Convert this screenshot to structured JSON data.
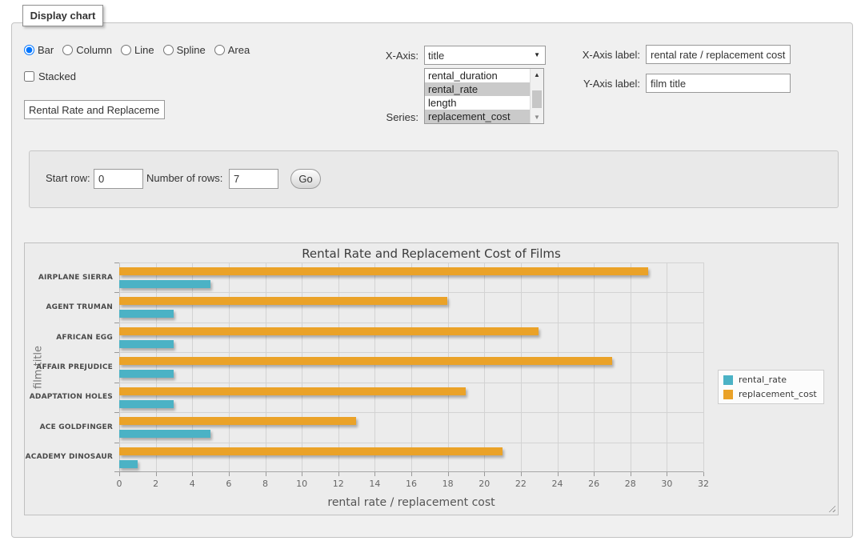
{
  "panel": {
    "legend": "Display chart"
  },
  "controls": {
    "chart_types": [
      {
        "label": "Bar",
        "selected": true
      },
      {
        "label": "Column",
        "selected": false
      },
      {
        "label": "Line",
        "selected": false
      },
      {
        "label": "Spline",
        "selected": false
      },
      {
        "label": "Area",
        "selected": false
      }
    ],
    "stacked": {
      "label": "Stacked",
      "checked": false
    },
    "chart_title_input": {
      "value": "Rental Rate and Replacement Cost of Films"
    },
    "x_axis": {
      "label": "X-Axis:",
      "value": "title"
    },
    "series": {
      "label": "Series:",
      "options": [
        {
          "label": "rental_duration",
          "selected": false
        },
        {
          "label": "rental_rate",
          "selected": true
        },
        {
          "label": "length",
          "selected": false
        },
        {
          "label": "replacement_cost",
          "selected": true
        }
      ]
    },
    "x_axis_label": {
      "label": "X-Axis label:",
      "value": "rental rate / replacement cost"
    },
    "y_axis_label": {
      "label": "Y-Axis label:",
      "value": "film title"
    }
  },
  "row_controls": {
    "start_row_label": "Start row:",
    "start_row_value": "0",
    "num_rows_label": "Number of rows:",
    "num_rows_value": "7",
    "go_label": "Go"
  },
  "chart_data": {
    "type": "bar",
    "orientation": "horizontal",
    "title": "Rental Rate and Replacement Cost of Films",
    "categories": [
      "AIRPLANE SIERRA",
      "AGENT TRUMAN",
      "AFRICAN EGG",
      "AFFAIR PREJUDICE",
      "ADAPTATION HOLES",
      "ACE GOLDFINGER",
      "ACADEMY DINOSAUR"
    ],
    "series": [
      {
        "name": "rental_rate",
        "color": "#4bb2c5",
        "values": [
          4.99,
          2.99,
          2.99,
          2.99,
          2.99,
          4.99,
          0.99
        ]
      },
      {
        "name": "replacement_cost",
        "color": "#EAA228",
        "values": [
          28.99,
          17.99,
          22.99,
          26.99,
          18.99,
          12.99,
          20.99
        ]
      }
    ],
    "xlabel": "rental rate / replacement cost",
    "ylabel": "film title",
    "xlim": [
      0,
      32
    ],
    "xtick_step": 2,
    "grid": true,
    "legend_position": "right",
    "colors": {
      "grid_line": "#d3d3d3",
      "plot_bg": "#ececec"
    }
  }
}
